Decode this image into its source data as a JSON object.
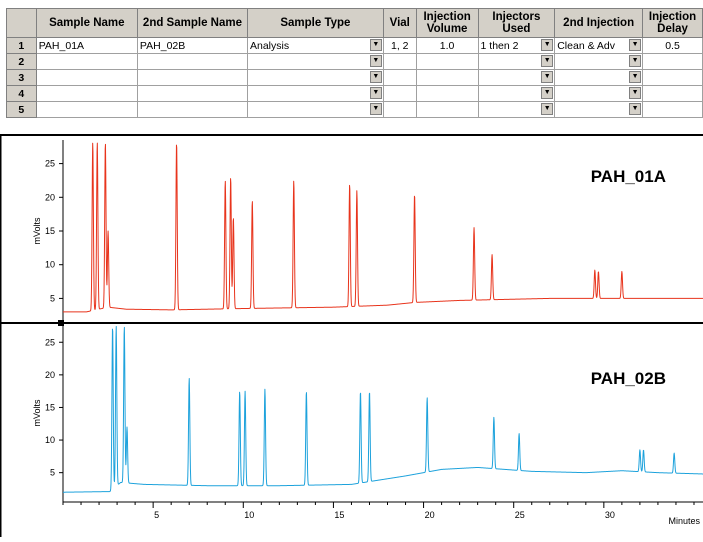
{
  "grid": {
    "columns": [
      "",
      "Sample Name",
      "2nd Sample Name",
      "Sample Type",
      "Vial",
      "Injection Volume",
      "Injectors Used",
      "2nd Injection",
      "Injection Delay"
    ],
    "rows": [
      {
        "num": "1",
        "sample_name": "PAH_01A",
        "second_sample_name": "PAH_02B",
        "sample_type": "Analysis",
        "vial": "1, 2",
        "injection_volume": "1.0",
        "injectors_used": "1 then 2",
        "second_injection": "Clean & Adv",
        "injection_delay": "0.5"
      },
      {
        "num": "2",
        "sample_name": "",
        "second_sample_name": "",
        "sample_type": "",
        "vial": "",
        "injection_volume": "",
        "injectors_used": "",
        "second_injection": "",
        "injection_delay": ""
      },
      {
        "num": "3",
        "sample_name": "",
        "second_sample_name": "",
        "sample_type": "",
        "vial": "",
        "injection_volume": "",
        "injectors_used": "",
        "second_injection": "",
        "injection_delay": ""
      },
      {
        "num": "4",
        "sample_name": "",
        "second_sample_name": "",
        "sample_type": "",
        "vial": "",
        "injection_volume": "",
        "injectors_used": "",
        "second_injection": "",
        "injection_delay": ""
      },
      {
        "num": "5",
        "sample_name": "",
        "second_sample_name": "",
        "sample_type": "",
        "vial": "",
        "injection_volume": "",
        "injectors_used": "",
        "second_injection": "",
        "injection_delay": ""
      }
    ]
  },
  "chart_data": [
    {
      "type": "line",
      "series": [
        {
          "name": "PAH_01A",
          "color": "#e8341c"
        }
      ],
      "ylabel": "mVolts",
      "yticks": [
        5,
        10,
        15,
        20,
        25
      ],
      "ylim": [
        1.5,
        28.5
      ],
      "xlim": [
        0,
        35.5
      ],
      "baseline": [
        [
          0,
          3.0
        ],
        [
          1.3,
          3.0
        ],
        [
          2.5,
          3.7
        ],
        [
          3.5,
          3.4
        ],
        [
          6,
          3.3
        ],
        [
          10,
          3.5
        ],
        [
          15,
          3.7
        ],
        [
          18,
          4.0
        ],
        [
          19.5,
          4.4
        ],
        [
          22,
          4.7
        ],
        [
          27,
          5.0
        ],
        [
          31,
          5.0
        ],
        [
          35.5,
          5.0
        ]
      ],
      "peaks": [
        [
          1.65,
          28.2
        ],
        [
          1.9,
          28.2
        ],
        [
          2.35,
          28.2
        ],
        [
          2.5,
          15
        ],
        [
          6.3,
          28.2
        ],
        [
          9.0,
          22.5
        ],
        [
          9.3,
          23
        ],
        [
          9.45,
          17
        ],
        [
          10.5,
          19.5
        ],
        [
          12.8,
          22.5
        ],
        [
          15.9,
          22
        ],
        [
          16.3,
          21
        ],
        [
          19.5,
          20.5
        ],
        [
          22.8,
          15.5
        ],
        [
          23.8,
          11.5
        ],
        [
          29.5,
          9.2
        ],
        [
          29.7,
          9
        ],
        [
          31.0,
          9
        ]
      ]
    },
    {
      "type": "line",
      "series": [
        {
          "name": "PAH_02B",
          "color": "#1da2dc"
        }
      ],
      "ylabel": "mVolts",
      "yticks": [
        5,
        10,
        15,
        20,
        25
      ],
      "xlabel": "Minutes",
      "xticks": [
        5,
        10,
        15,
        20,
        25,
        30
      ],
      "ylim": [
        0.5,
        27.8
      ],
      "xlim": [
        0,
        35.5
      ],
      "baseline": [
        [
          0,
          2.0
        ],
        [
          2.6,
          2.1
        ],
        [
          3.2,
          3.5
        ],
        [
          4.5,
          3.2
        ],
        [
          8,
          3.0
        ],
        [
          12,
          3.0
        ],
        [
          16,
          3.2
        ],
        [
          19,
          4.5
        ],
        [
          21,
          5.5
        ],
        [
          23,
          5.8
        ],
        [
          26,
          5.2
        ],
        [
          29,
          5.0
        ],
        [
          31,
          5.3
        ],
        [
          33,
          5.0
        ],
        [
          35.5,
          4.8
        ]
      ],
      "peaks": [
        [
          2.75,
          27.5
        ],
        [
          2.95,
          27.5
        ],
        [
          3.4,
          27.5
        ],
        [
          3.55,
          12
        ],
        [
          7.0,
          19.5
        ],
        [
          9.8,
          17.5
        ],
        [
          10.1,
          17.5
        ],
        [
          11.2,
          17.8
        ],
        [
          13.5,
          17.5
        ],
        [
          16.5,
          17.5
        ],
        [
          17.0,
          17.5
        ],
        [
          20.2,
          16.5
        ],
        [
          23.9,
          13.5
        ],
        [
          25.3,
          11
        ],
        [
          32.0,
          8.5
        ],
        [
          32.2,
          8.5
        ],
        [
          33.9,
          8
        ]
      ]
    }
  ]
}
